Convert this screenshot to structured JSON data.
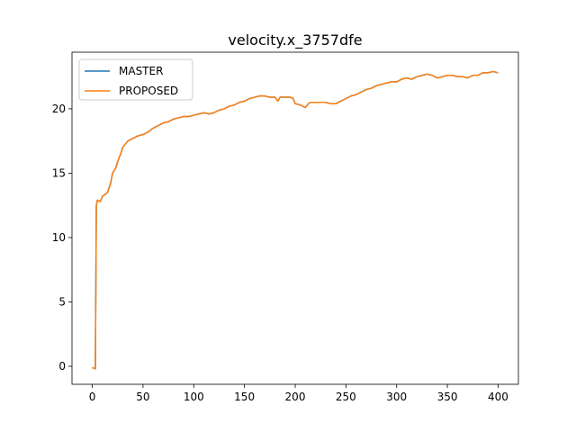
{
  "chart_data": {
    "type": "line",
    "title": "velocity.x_3757dfe",
    "xlabel": "",
    "ylabel": "",
    "xlim": [
      -20,
      420
    ],
    "ylim": [
      -1.4,
      24.4
    ],
    "xticks": [
      0,
      50,
      100,
      150,
      200,
      250,
      300,
      350,
      400
    ],
    "yticks": [
      0,
      5,
      10,
      15,
      20
    ],
    "grid": false,
    "legend_position": "top-left",
    "series": [
      {
        "name": "MASTER",
        "color": "#1f77b4",
        "x": [
          0,
          3,
          4,
          5,
          8,
          10,
          15,
          18,
          20,
          23,
          25,
          28,
          30,
          33,
          35,
          40,
          45,
          50,
          55,
          60,
          65,
          70,
          75,
          80,
          85,
          90,
          95,
          100,
          105,
          110,
          115,
          120,
          125,
          130,
          135,
          140,
          145,
          150,
          155,
          160,
          165,
          170,
          175,
          180,
          183,
          185,
          190,
          195,
          198,
          200,
          205,
          210,
          213,
          215,
          220,
          225,
          230,
          235,
          240,
          245,
          250,
          255,
          260,
          265,
          270,
          275,
          280,
          285,
          290,
          295,
          300,
          305,
          310,
          315,
          320,
          325,
          330,
          335,
          340,
          345,
          350,
          355,
          360,
          365,
          370,
          375,
          380,
          385,
          390,
          395,
          400
        ],
        "y": [
          -0.1,
          -0.2,
          12.5,
          12.9,
          12.8,
          13.2,
          13.5,
          14.2,
          15.0,
          15.4,
          15.9,
          16.5,
          17.0,
          17.3,
          17.5,
          17.7,
          17.9,
          18.0,
          18.2,
          18.5,
          18.7,
          18.9,
          19.0,
          19.2,
          19.3,
          19.4,
          19.4,
          19.5,
          19.6,
          19.7,
          19.6,
          19.7,
          19.9,
          20.0,
          20.2,
          20.3,
          20.5,
          20.6,
          20.8,
          20.9,
          21.0,
          21.0,
          20.9,
          20.9,
          20.6,
          20.9,
          20.9,
          20.9,
          20.8,
          20.4,
          20.3,
          20.1,
          20.4,
          20.5,
          20.5,
          20.5,
          20.5,
          20.4,
          20.4,
          20.6,
          20.8,
          21.0,
          21.1,
          21.3,
          21.5,
          21.6,
          21.8,
          21.9,
          22.0,
          22.1,
          22.1,
          22.3,
          22.4,
          22.3,
          22.5,
          22.6,
          22.7,
          22.6,
          22.4,
          22.5,
          22.6,
          22.6,
          22.5,
          22.5,
          22.4,
          22.6,
          22.6,
          22.8,
          22.8,
          22.9,
          22.8
        ]
      },
      {
        "name": "PROPOSED",
        "color": "#ff7f0e",
        "x": [
          0,
          3,
          4,
          5,
          8,
          10,
          15,
          18,
          20,
          23,
          25,
          28,
          30,
          33,
          35,
          40,
          45,
          50,
          55,
          60,
          65,
          70,
          75,
          80,
          85,
          90,
          95,
          100,
          105,
          110,
          115,
          120,
          125,
          130,
          135,
          140,
          145,
          150,
          155,
          160,
          165,
          170,
          175,
          180,
          183,
          185,
          190,
          195,
          198,
          200,
          205,
          210,
          213,
          215,
          220,
          225,
          230,
          235,
          240,
          245,
          250,
          255,
          260,
          265,
          270,
          275,
          280,
          285,
          290,
          295,
          300,
          305,
          310,
          315,
          320,
          325,
          330,
          335,
          340,
          345,
          350,
          355,
          360,
          365,
          370,
          375,
          380,
          385,
          390,
          395,
          400
        ],
        "y": [
          -0.1,
          -0.2,
          12.5,
          12.9,
          12.8,
          13.2,
          13.5,
          14.2,
          15.0,
          15.4,
          15.9,
          16.5,
          17.0,
          17.3,
          17.5,
          17.7,
          17.9,
          18.0,
          18.2,
          18.5,
          18.7,
          18.9,
          19.0,
          19.2,
          19.3,
          19.4,
          19.4,
          19.5,
          19.6,
          19.7,
          19.6,
          19.7,
          19.9,
          20.0,
          20.2,
          20.3,
          20.5,
          20.6,
          20.8,
          20.9,
          21.0,
          21.0,
          20.9,
          20.9,
          20.6,
          20.9,
          20.9,
          20.9,
          20.8,
          20.4,
          20.3,
          20.1,
          20.4,
          20.5,
          20.5,
          20.5,
          20.5,
          20.4,
          20.4,
          20.6,
          20.8,
          21.0,
          21.1,
          21.3,
          21.5,
          21.6,
          21.8,
          21.9,
          22.0,
          22.1,
          22.1,
          22.3,
          22.4,
          22.3,
          22.5,
          22.6,
          22.7,
          22.6,
          22.4,
          22.5,
          22.6,
          22.6,
          22.5,
          22.5,
          22.4,
          22.6,
          22.6,
          22.8,
          22.8,
          22.9,
          22.8
        ]
      }
    ]
  }
}
